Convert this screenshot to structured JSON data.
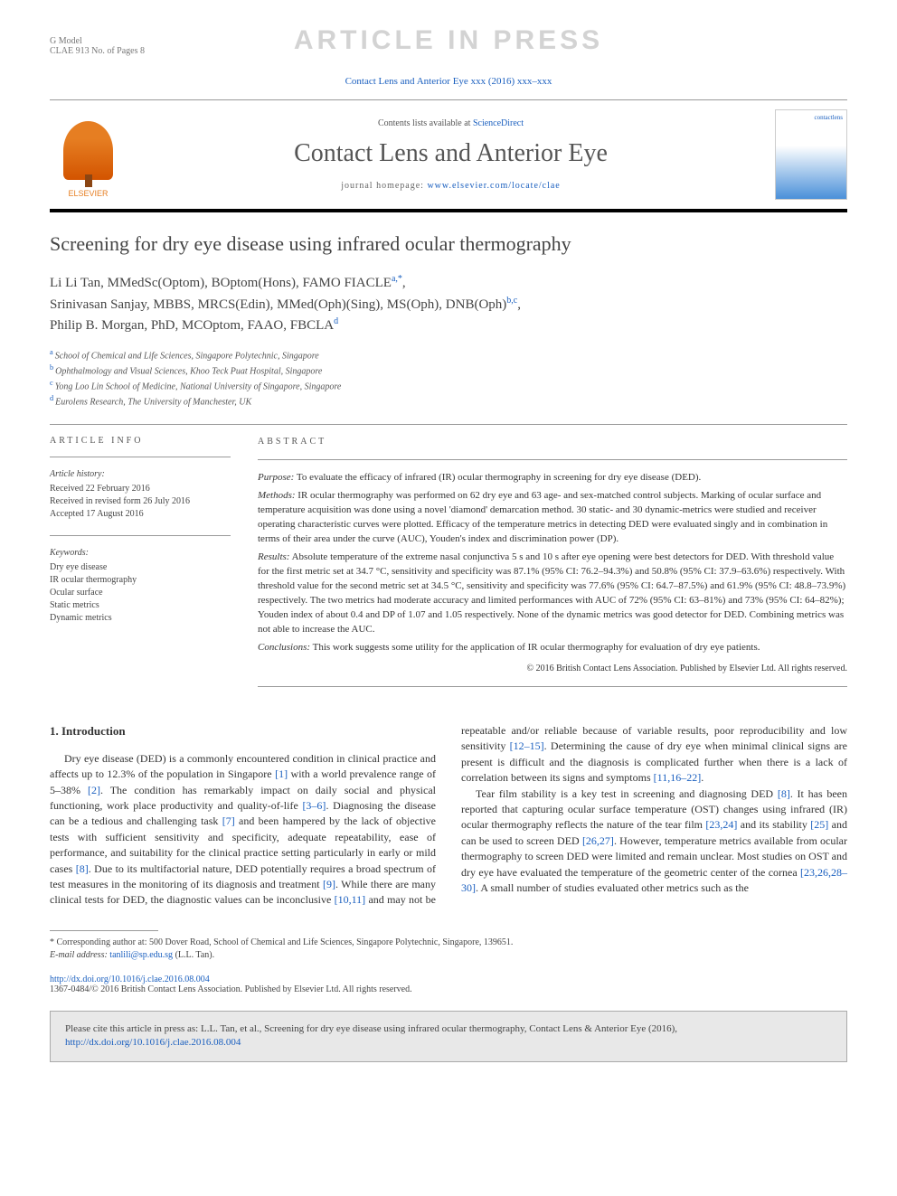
{
  "header": {
    "model_line": "G Model",
    "model_id": "CLAE 913 No. of Pages 8",
    "watermark": "ARTICLE IN PRESS",
    "journal_ref": "Contact Lens and Anterior Eye xxx (2016) xxx–xxx",
    "contents_prefix": "Contents lists available at ",
    "contents_link": "ScienceDirect",
    "journal_title": "Contact Lens and Anterior Eye",
    "homepage_prefix": "journal homepage: ",
    "homepage_url": "www.elsevier.com/locate/clae",
    "publisher_label": "ELSEVIER",
    "cover_label": "contactlens"
  },
  "article": {
    "title": "Screening for dry eye disease using infrared ocular thermography",
    "authors_line1": "Li Li Tan, MMedSc(Optom), BOptom(Hons), FAMO FIACLE",
    "authors_sup1": "a,*",
    "authors_line2_name": "Srinivasan Sanjay, MBBS, MRCS(Edin), MMed(Oph)(Sing), MS(Oph), DNB(Oph)",
    "authors_sup2": "b,c",
    "authors_line3_name": "Philip B. Morgan, PhD, MCOptom, FAAO, FBCLA",
    "authors_sup3": "d",
    "affiliations": [
      {
        "sup": "a",
        "text": "School of Chemical and Life Sciences, Singapore Polytechnic, Singapore"
      },
      {
        "sup": "b",
        "text": "Ophthalmology and Visual Sciences, Khoo Teck Puat Hospital, Singapore"
      },
      {
        "sup": "c",
        "text": "Yong Loo Lin School of Medicine, National University of Singapore, Singapore"
      },
      {
        "sup": "d",
        "text": "Eurolens Research, The University of Manchester, UK"
      }
    ]
  },
  "info": {
    "heading": "ARTICLE INFO",
    "history_title": "Article history:",
    "history": [
      "Received 22 February 2016",
      "Received in revised form 26 July 2016",
      "Accepted 17 August 2016"
    ],
    "keywords_title": "Keywords:",
    "keywords": [
      "Dry eye disease",
      "IR ocular thermography",
      "Ocular surface",
      "Static metrics",
      "Dynamic metrics"
    ]
  },
  "abstract": {
    "heading": "ABSTRACT",
    "purpose_label": "Purpose:",
    "purpose": " To evaluate the efficacy of infrared (IR) ocular thermography in screening for dry eye disease (DED).",
    "methods_label": "Methods:",
    "methods": " IR ocular thermography was performed on 62 dry eye and 63 age- and sex-matched control subjects. Marking of ocular surface and temperature acquisition was done using a novel 'diamond' demarcation method. 30 static- and 30 dynamic-metrics were studied and receiver operating characteristic curves were plotted. Efficacy of the temperature metrics in detecting DED were evaluated singly and in combination in terms of their area under the curve (AUC), Youden's index and discrimination power (DP).",
    "results_label": "Results:",
    "results": " Absolute temperature of the extreme nasal conjunctiva 5 s and 10 s after eye opening were best detectors for DED. With threshold value for the first metric set at 34.7 °C, sensitivity and specificity was 87.1% (95% CI: 76.2–94.3%) and 50.8% (95% CI: 37.9–63.6%) respectively. With threshold value for the second metric set at 34.5 °C, sensitivity and specificity was 77.6% (95% CI: 64.7–87.5%) and 61.9% (95% CI: 48.8–73.9%) respectively. The two metrics had moderate accuracy and limited performances with AUC of 72% (95% CI: 63–81%) and 73% (95% CI: 64–82%); Youden index of about 0.4 and DP of 1.07 and 1.05 respectively. None of the dynamic metrics was good detector for DED. Combining metrics was not able to increase the AUC.",
    "conclusions_label": "Conclusions:",
    "conclusions": " This work suggests some utility for the application of IR ocular thermography for evaluation of dry eye patients.",
    "copyright": "© 2016 British Contact Lens Association. Published by Elsevier Ltd. All rights reserved."
  },
  "body": {
    "section_number": "1. Introduction",
    "para1_a": "Dry eye disease (DED) is a commonly encountered condition in clinical practice and affects up to 12.3% of the population in Singapore ",
    "cite1": "[1]",
    "para1_b": " with a world prevalence range of 5–38% ",
    "cite2": "[2]",
    "para1_c": ". The condition has remarkably impact on daily social and physical functioning, work place productivity and quality-of-life ",
    "cite3": "[3–6]",
    "para1_d": ". Diagnosing the disease can be a tedious and challenging task ",
    "cite4": "[7]",
    "para1_e": " and been hampered by the lack of objective tests with sufficient sensitivity and specificity, adequate repeatability, ease of performance, and suitability for the clinical practice setting particularly in early or mild cases ",
    "cite5": "[8]",
    "para1_f": ". Due to its multifactorial nature, DED potentially requires a broad spectrum of test measures in the monitoring of its diagnosis and treatment ",
    "cite6": "[9]",
    "para1_g": ". While there are many clinical tests for DED, the diagnostic values can be inconclusive ",
    "cite7": "[10,11]",
    "para1_h": " and may not be repeatable and/or reliable because of variable results, poor reproducibility and low sensitivity ",
    "cite8": "[12–15]",
    "para1_i": ". Determining the cause of dry eye when minimal clinical signs are present is difficult and the diagnosis is complicated further when there is a lack of correlation between its signs and symptoms ",
    "cite9": "[11,16–22]",
    "para1_j": ".",
    "para2_a": "Tear film stability is a key test in screening and diagnosing DED ",
    "cite10": "[8]",
    "para2_b": ". It has been reported that capturing ocular surface temperature (OST) changes using infrared (IR) ocular thermography reflects the nature of the tear film ",
    "cite11": "[23,24]",
    "para2_c": " and its stability ",
    "cite12": "[25]",
    "para2_d": " and can be used to screen DED ",
    "cite13": "[26,27]",
    "para2_e": ". However, temperature metrics available from ocular thermography to screen DED were limited and remain unclear. Most studies on OST and dry eye have evaluated the temperature of the geometric center of the cornea ",
    "cite14": "[23,26,28–30]",
    "para2_f": ". A small number of studies evaluated other metrics such as the"
  },
  "footnotes": {
    "corr_label": "* Corresponding author at: 500 Dover Road, School of Chemical and Life Sciences, Singapore Polytechnic, Singapore, 139651.",
    "email_label": "E-mail address: ",
    "email": "tanlili@sp.edu.sg",
    "email_suffix": " (L.L. Tan)."
  },
  "doi": {
    "url": "http://dx.doi.org/10.1016/j.clae.2016.08.004",
    "issn_line": "1367-0484/© 2016 British Contact Lens Association. Published by Elsevier Ltd. All rights reserved."
  },
  "citation_box": {
    "text_a": "Please cite this article in press as: L.L. Tan, et al., Screening for dry eye disease using infrared ocular thermography, Contact Lens & Anterior Eye (2016), ",
    "url": "http://dx.doi.org/10.1016/j.clae.2016.08.004"
  },
  "colors": {
    "link": "#1a5fbf",
    "watermark": "#d3d3d3",
    "text": "#333333",
    "muted": "#777777",
    "box_bg": "#e8e8e8"
  }
}
